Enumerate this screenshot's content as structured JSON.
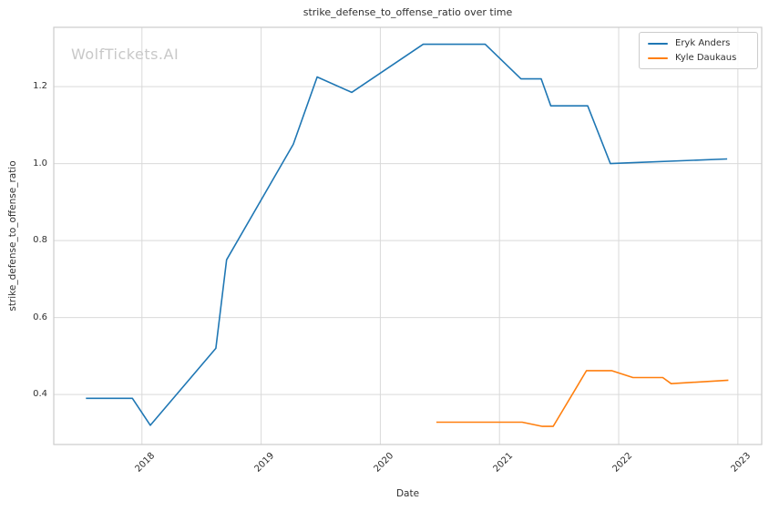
{
  "chart_data": {
    "type": "line",
    "title": "strike_defense_to_offense_ratio over time",
    "xlabel": "Date",
    "ylabel": "strike_defense_to_offense_ratio",
    "watermark": "WolfTickets.AI",
    "watermark_color": "#c8c8c8",
    "text_color": "#303030",
    "grid": true,
    "grid_color": "#d9d9d9",
    "spine_color": "#cccccc",
    "xlim": [
      2017.26,
      2023.2
    ],
    "ylim": [
      0.27,
      1.354
    ],
    "xticks": {
      "values": [
        2018,
        2019,
        2020,
        2021,
        2022,
        2023
      ],
      "labels": [
        "2018",
        "2019",
        "2020",
        "2021",
        "2022",
        "2023"
      ]
    },
    "yticks": {
      "values": [
        0.4,
        0.6,
        0.8,
        1.0,
        1.2
      ],
      "labels": [
        "0.4",
        "0.6",
        "0.8",
        "1.0",
        "1.2"
      ]
    },
    "legend": {
      "position": "upper right"
    },
    "series": [
      {
        "name": "Eryk Anders",
        "color": "#1f77b4",
        "points": [
          [
            2017.53,
            0.39
          ],
          [
            2017.92,
            0.39
          ],
          [
            2018.07,
            0.32
          ],
          [
            2018.62,
            0.52
          ],
          [
            2018.71,
            0.75
          ],
          [
            2019.27,
            1.05
          ],
          [
            2019.47,
            1.225
          ],
          [
            2019.76,
            1.185
          ],
          [
            2020.36,
            1.31
          ],
          [
            2020.88,
            1.31
          ],
          [
            2021.18,
            1.22
          ],
          [
            2021.35,
            1.22
          ],
          [
            2021.43,
            1.15
          ],
          [
            2021.74,
            1.15
          ],
          [
            2021.93,
            1.0
          ],
          [
            2022.17,
            1.003
          ],
          [
            2022.91,
            1.012
          ]
        ]
      },
      {
        "name": "Kyle Daukaus",
        "color": "#ff7f0e",
        "points": [
          [
            2020.47,
            0.328
          ],
          [
            2021.19,
            0.328
          ],
          [
            2021.36,
            0.317
          ],
          [
            2021.45,
            0.317
          ],
          [
            2021.73,
            0.462
          ],
          [
            2021.94,
            0.462
          ],
          [
            2022.12,
            0.444
          ],
          [
            2022.37,
            0.444
          ],
          [
            2022.44,
            0.428
          ],
          [
            2022.92,
            0.437
          ]
        ]
      }
    ]
  }
}
